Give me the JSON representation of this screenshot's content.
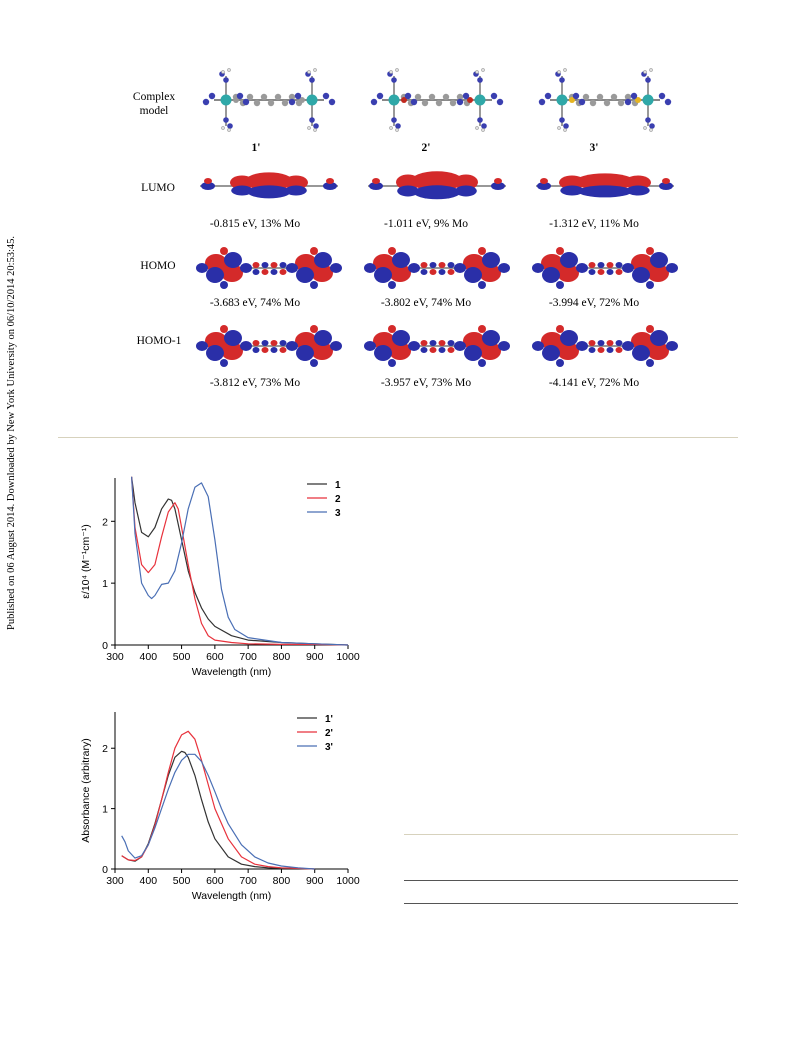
{
  "side_note": "Published on 06 August 2014. Downloaded by New York University on 06/10/2014 20:53:45.",
  "orbital_figure": {
    "header_label": "Complex\nmodel",
    "columns": [
      "1'",
      "2'",
      "3'"
    ],
    "rows": [
      {
        "label": "LUMO",
        "energies": [
          "-0.815 eV, 13% Mo",
          "-1.011 eV, 9% Mo",
          "-1.312 eV, 11% Mo"
        ]
      },
      {
        "label": "HOMO",
        "energies": [
          "-3.683 eV, 74% Mo",
          "-3.802 eV, 74% Mo",
          "-3.994 eV, 72% Mo"
        ]
      },
      {
        "label": "HOMO-1",
        "energies": [
          "-3.812 eV, 73% Mo",
          "-3.957 eV, 73% Mo",
          "-4.141 eV, 72% Mo"
        ]
      }
    ]
  },
  "chart_data": [
    {
      "type": "line",
      "xlabel": "Wavelength (nm)",
      "ylabel": "ε/10⁴ (M⁻¹cm⁻¹)",
      "xlim": [
        300,
        1000
      ],
      "ylim": [
        0,
        2.7
      ],
      "xticks": [
        300,
        400,
        500,
        600,
        700,
        800,
        900,
        1000
      ],
      "yticks": [
        0,
        1,
        2
      ],
      "legend": "top-right",
      "series": [
        {
          "name": "1",
          "color": "#333333",
          "x": [
            350,
            360,
            380,
            400,
            420,
            440,
            460,
            470,
            480,
            500,
            520,
            540,
            560,
            580,
            600,
            650,
            700,
            800,
            900,
            1000
          ],
          "y": [
            2.72,
            2.3,
            1.82,
            1.75,
            1.9,
            2.2,
            2.36,
            2.34,
            2.2,
            1.7,
            1.2,
            0.85,
            0.6,
            0.42,
            0.3,
            0.15,
            0.08,
            0.04,
            0.02,
            0.0
          ]
        },
        {
          "name": "2",
          "color": "#e8323c",
          "x": [
            350,
            360,
            380,
            400,
            420,
            440,
            460,
            480,
            490,
            500,
            520,
            540,
            560,
            580,
            600,
            650,
            700,
            800,
            900,
            1000
          ],
          "y": [
            2.72,
            1.9,
            1.3,
            1.17,
            1.3,
            1.75,
            2.15,
            2.3,
            2.2,
            1.9,
            1.3,
            0.75,
            0.35,
            0.15,
            0.08,
            0.04,
            0.02,
            0.01,
            0.01,
            0.0
          ]
        },
        {
          "name": "3",
          "color": "#4a6fb5",
          "x": [
            350,
            360,
            380,
            400,
            410,
            420,
            440,
            460,
            480,
            500,
            520,
            540,
            560,
            580,
            600,
            620,
            640,
            660,
            700,
            800,
            900,
            1000
          ],
          "y": [
            2.72,
            1.8,
            1.0,
            0.8,
            0.75,
            0.8,
            0.98,
            1.0,
            1.2,
            1.65,
            2.2,
            2.55,
            2.62,
            2.4,
            1.7,
            0.9,
            0.45,
            0.25,
            0.12,
            0.04,
            0.02,
            0.0
          ]
        }
      ]
    },
    {
      "type": "line",
      "xlabel": "Wavelength (nm)",
      "ylabel": "Absorbance (arbitrary)",
      "xlim": [
        300,
        1000
      ],
      "ylim": [
        0,
        2.6
      ],
      "xticks": [
        300,
        400,
        500,
        600,
        700,
        800,
        900,
        1000
      ],
      "yticks": [
        0,
        1,
        2
      ],
      "legend": "top-right",
      "series": [
        {
          "name": "1'",
          "color": "#333333",
          "x": [
            320,
            340,
            360,
            380,
            400,
            420,
            440,
            460,
            480,
            500,
            510,
            520,
            540,
            560,
            580,
            600,
            640,
            680,
            720,
            760,
            800,
            850,
            900
          ],
          "y": [
            0.22,
            0.15,
            0.13,
            0.2,
            0.42,
            0.75,
            1.15,
            1.55,
            1.85,
            1.95,
            1.93,
            1.85,
            1.55,
            1.15,
            0.78,
            0.5,
            0.2,
            0.08,
            0.04,
            0.02,
            0.01,
            0.01,
            0.0
          ]
        },
        {
          "name": "2'",
          "color": "#e8323c",
          "x": [
            320,
            340,
            360,
            380,
            400,
            420,
            440,
            460,
            480,
            500,
            520,
            540,
            560,
            580,
            600,
            640,
            680,
            720,
            760,
            800,
            850,
            900
          ],
          "y": [
            0.22,
            0.15,
            0.14,
            0.2,
            0.4,
            0.72,
            1.15,
            1.6,
            2.0,
            2.22,
            2.28,
            2.15,
            1.8,
            1.4,
            1.0,
            0.5,
            0.2,
            0.08,
            0.04,
            0.02,
            0.01,
            0.0
          ]
        },
        {
          "name": "3'",
          "color": "#4a6fb5",
          "x": [
            320,
            330,
            340,
            360,
            380,
            400,
            420,
            440,
            460,
            480,
            500,
            520,
            540,
            560,
            580,
            600,
            620,
            640,
            680,
            720,
            760,
            800,
            850,
            900
          ],
          "y": [
            0.55,
            0.45,
            0.3,
            0.18,
            0.22,
            0.4,
            0.68,
            1.0,
            1.32,
            1.6,
            1.8,
            1.9,
            1.9,
            1.78,
            1.55,
            1.28,
            1.0,
            0.75,
            0.4,
            0.2,
            0.1,
            0.05,
            0.02,
            0.0
          ]
        }
      ]
    }
  ]
}
